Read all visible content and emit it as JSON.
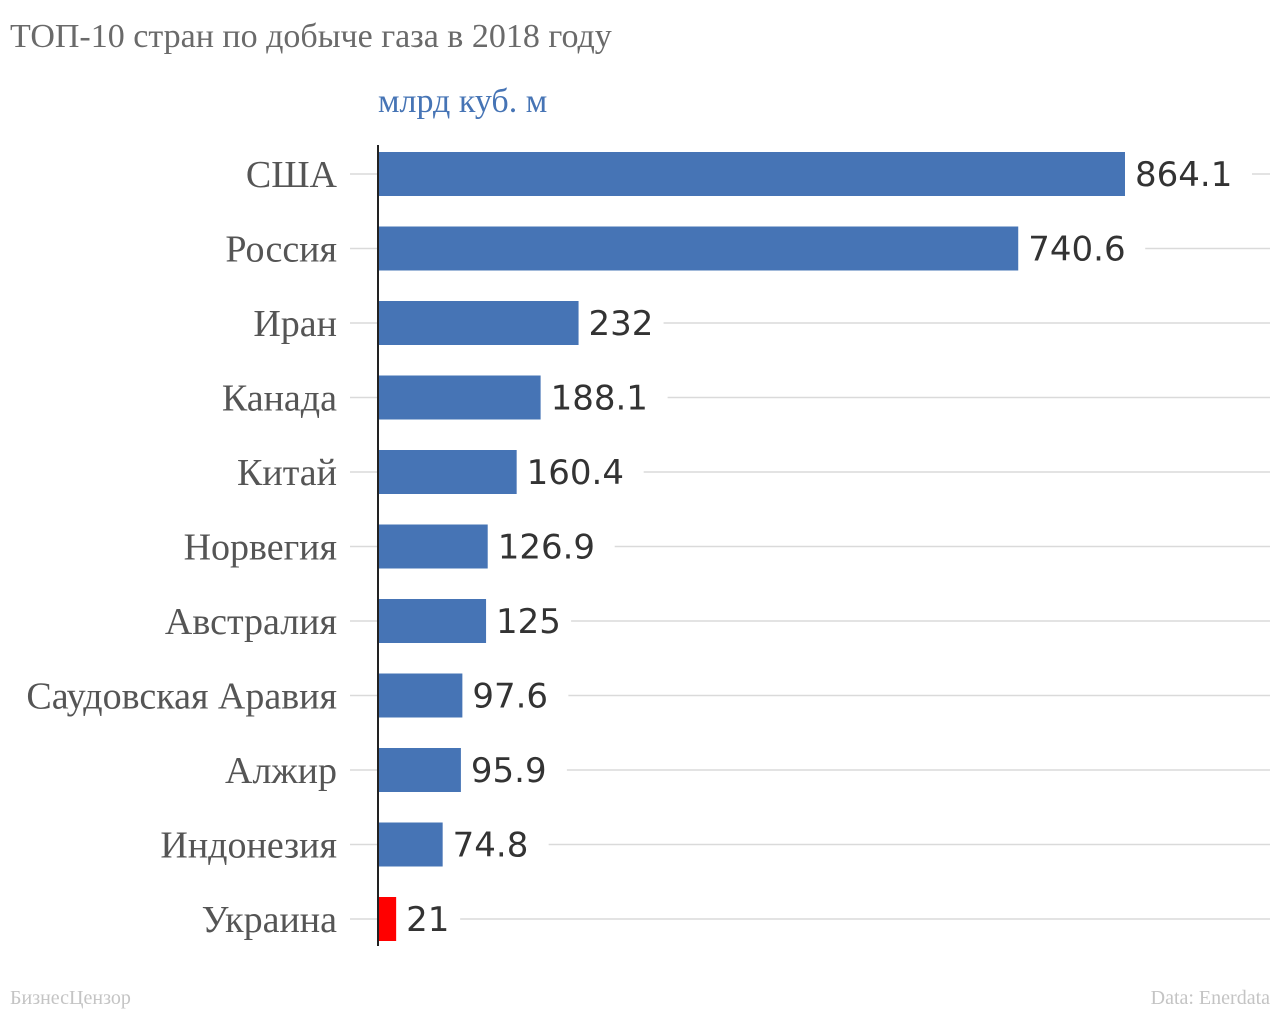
{
  "chart_data": {
    "type": "bar",
    "orientation": "horizontal",
    "title": "ТОП-10 стран по добыче газа в 2018 году",
    "unit": "млрд куб. м",
    "categories": [
      "США",
      "Россия",
      "Иран",
      "Канада",
      "Китай",
      "Норвегия",
      "Австралия",
      "Саудовская Аравия",
      "Алжир",
      "Индонезия",
      "Украина"
    ],
    "values": [
      864.1,
      740.6,
      232,
      188.1,
      160.4,
      126.9,
      125,
      97.6,
      95.9,
      74.8,
      21
    ],
    "value_labels": [
      "864.1",
      "740.6",
      "232",
      "188.1",
      "160.4",
      "126.9",
      "125",
      "97.6",
      "95.9",
      "74.8",
      "21"
    ],
    "bar_colors": [
      "#4674b5",
      "#4674b5",
      "#4674b5",
      "#4674b5",
      "#4674b5",
      "#4674b5",
      "#4674b5",
      "#4674b5",
      "#4674b5",
      "#4674b5",
      "#ff0000"
    ],
    "xlim": [
      0,
      1000
    ],
    "grid": true,
    "legend": "none"
  },
  "footer": {
    "brand": "БизнесЦензор",
    "source": "Data: Enerdata"
  },
  "colors": {
    "bar": "#4674b5",
    "highlight": "#ff0000"
  }
}
